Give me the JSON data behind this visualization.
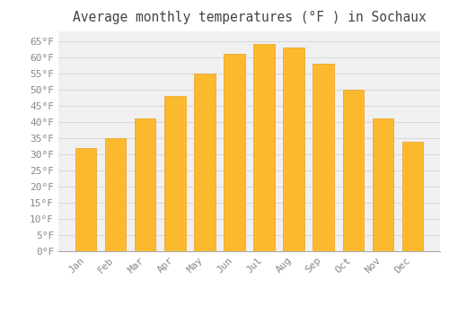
{
  "months": [
    "Jan",
    "Feb",
    "Mar",
    "Apr",
    "May",
    "Jun",
    "Jul",
    "Aug",
    "Sep",
    "Oct",
    "Nov",
    "Dec"
  ],
  "values": [
    32,
    35,
    41,
    48,
    55,
    61,
    64,
    63,
    58,
    50,
    41,
    34
  ],
  "bar_color": "#FDB92E",
  "bar_edge_color": "#E8A020",
  "title": "Average monthly temperatures (°F ) in Sochaux",
  "ylim": [
    0,
    68
  ],
  "yticks": [
    0,
    5,
    10,
    15,
    20,
    25,
    30,
    35,
    40,
    45,
    50,
    55,
    60,
    65
  ],
  "ytick_labels": [
    "0°F",
    "5°F",
    "10°F",
    "15°F",
    "20°F",
    "25°F",
    "30°F",
    "35°F",
    "40°F",
    "45°F",
    "50°F",
    "55°F",
    "60°F",
    "65°F"
  ],
  "background_color": "#ffffff",
  "plot_bg_color": "#f0f0f0",
  "grid_color": "#d8d8d8",
  "title_fontsize": 10.5,
  "tick_fontsize": 8,
  "tick_color": "#888888",
  "font_family": "monospace",
  "bar_width": 0.7
}
